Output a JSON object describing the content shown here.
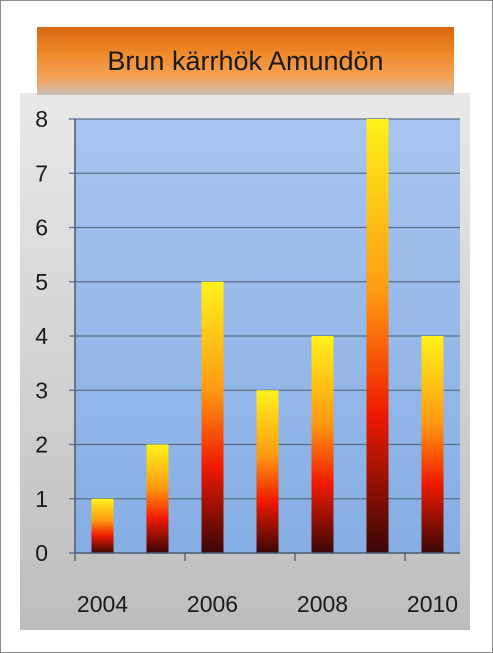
{
  "chart_data": {
    "type": "bar",
    "title": "Brun kärrhök Amundön",
    "categories": [
      "2004",
      "2005",
      "2006",
      "2007",
      "2008",
      "2009",
      "2010"
    ],
    "values": [
      1,
      2,
      5,
      3,
      4,
      8,
      4
    ],
    "x_tick_labels": [
      "2004",
      "2006",
      "2008",
      "2010"
    ],
    "y_ticks": [
      0,
      1,
      2,
      3,
      4,
      5,
      6,
      7,
      8
    ],
    "ylim": [
      0,
      8
    ],
    "grid": true,
    "xlabel": "",
    "ylabel": "",
    "colors": {
      "plot_bg_top": "#a8c4ee",
      "plot_bg_bottom": "#86aee3",
      "bar_top": "#fff21a",
      "bar_mid_orange": "#ff9a12",
      "bar_mid_red": "#f01a00",
      "bar_bottom": "#3a0606",
      "title_bg": "#ee7f22"
    }
  }
}
